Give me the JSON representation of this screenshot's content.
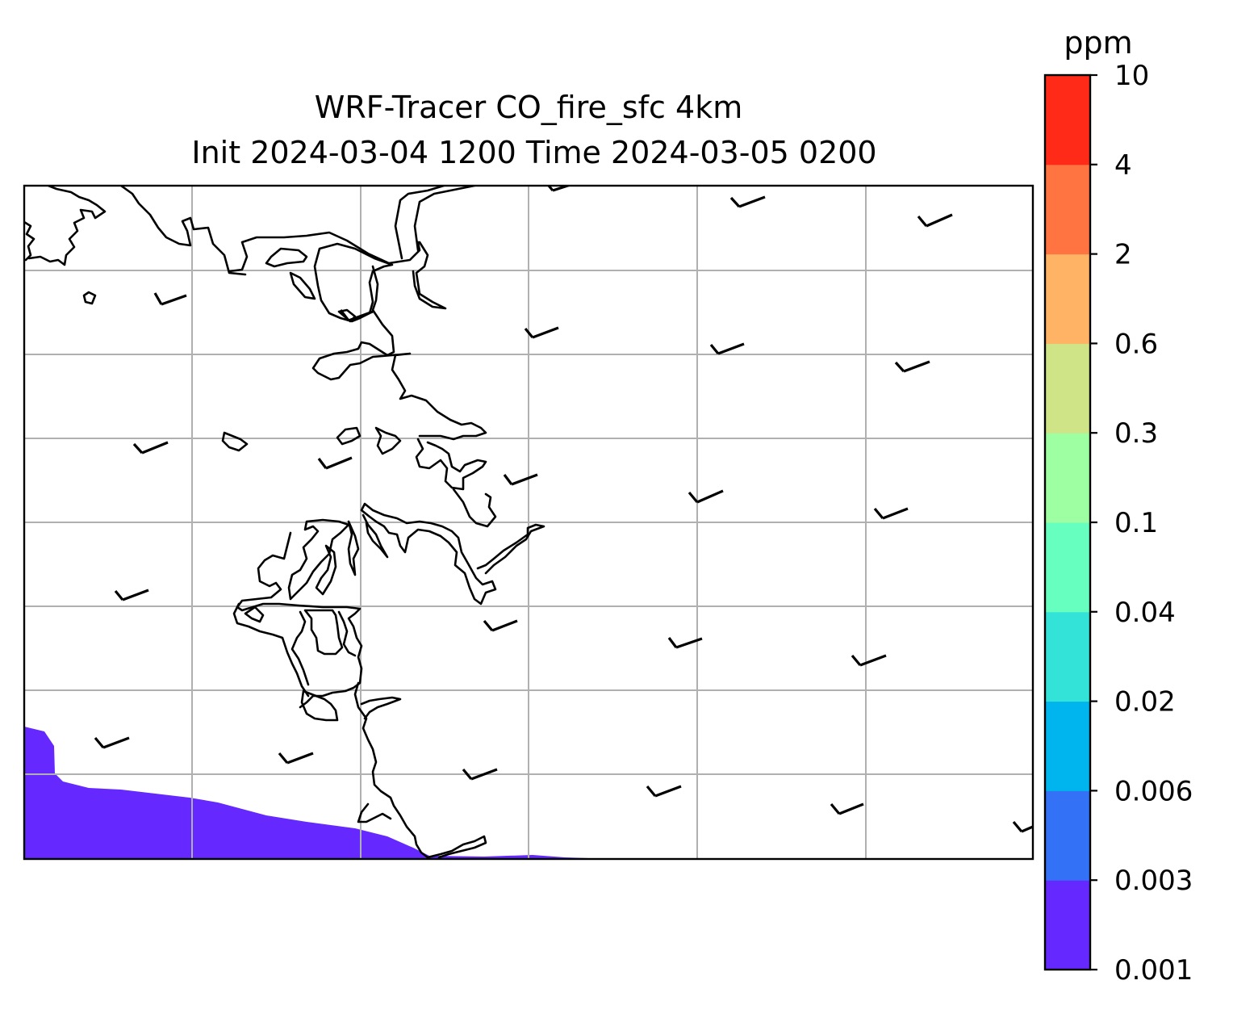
{
  "title": {
    "line1": "WRF-Tracer CO_fire_sfc 4km",
    "line2": "Init 2024-03-04 1200 Time 2024-03-05 0200"
  },
  "colorbar": {
    "unit": "ppm",
    "levels": [
      "0.001",
      "0.003",
      "0.006",
      "0.02",
      "0.04",
      "0.1",
      "0.3",
      "0.6",
      "2",
      "4",
      "10"
    ],
    "colors": [
      "#6528ff",
      "#3372f7",
      "#00b4ee",
      "#33e3d8",
      "#66ffbf",
      "#9dffa1",
      "#cfe387",
      "#ffb364",
      "#ff7440",
      "#ff2a18"
    ]
  },
  "map": {
    "plume_color": "#6528ff",
    "coastline_color": "#000000",
    "gridline_color": "#b0b0b0"
  }
}
